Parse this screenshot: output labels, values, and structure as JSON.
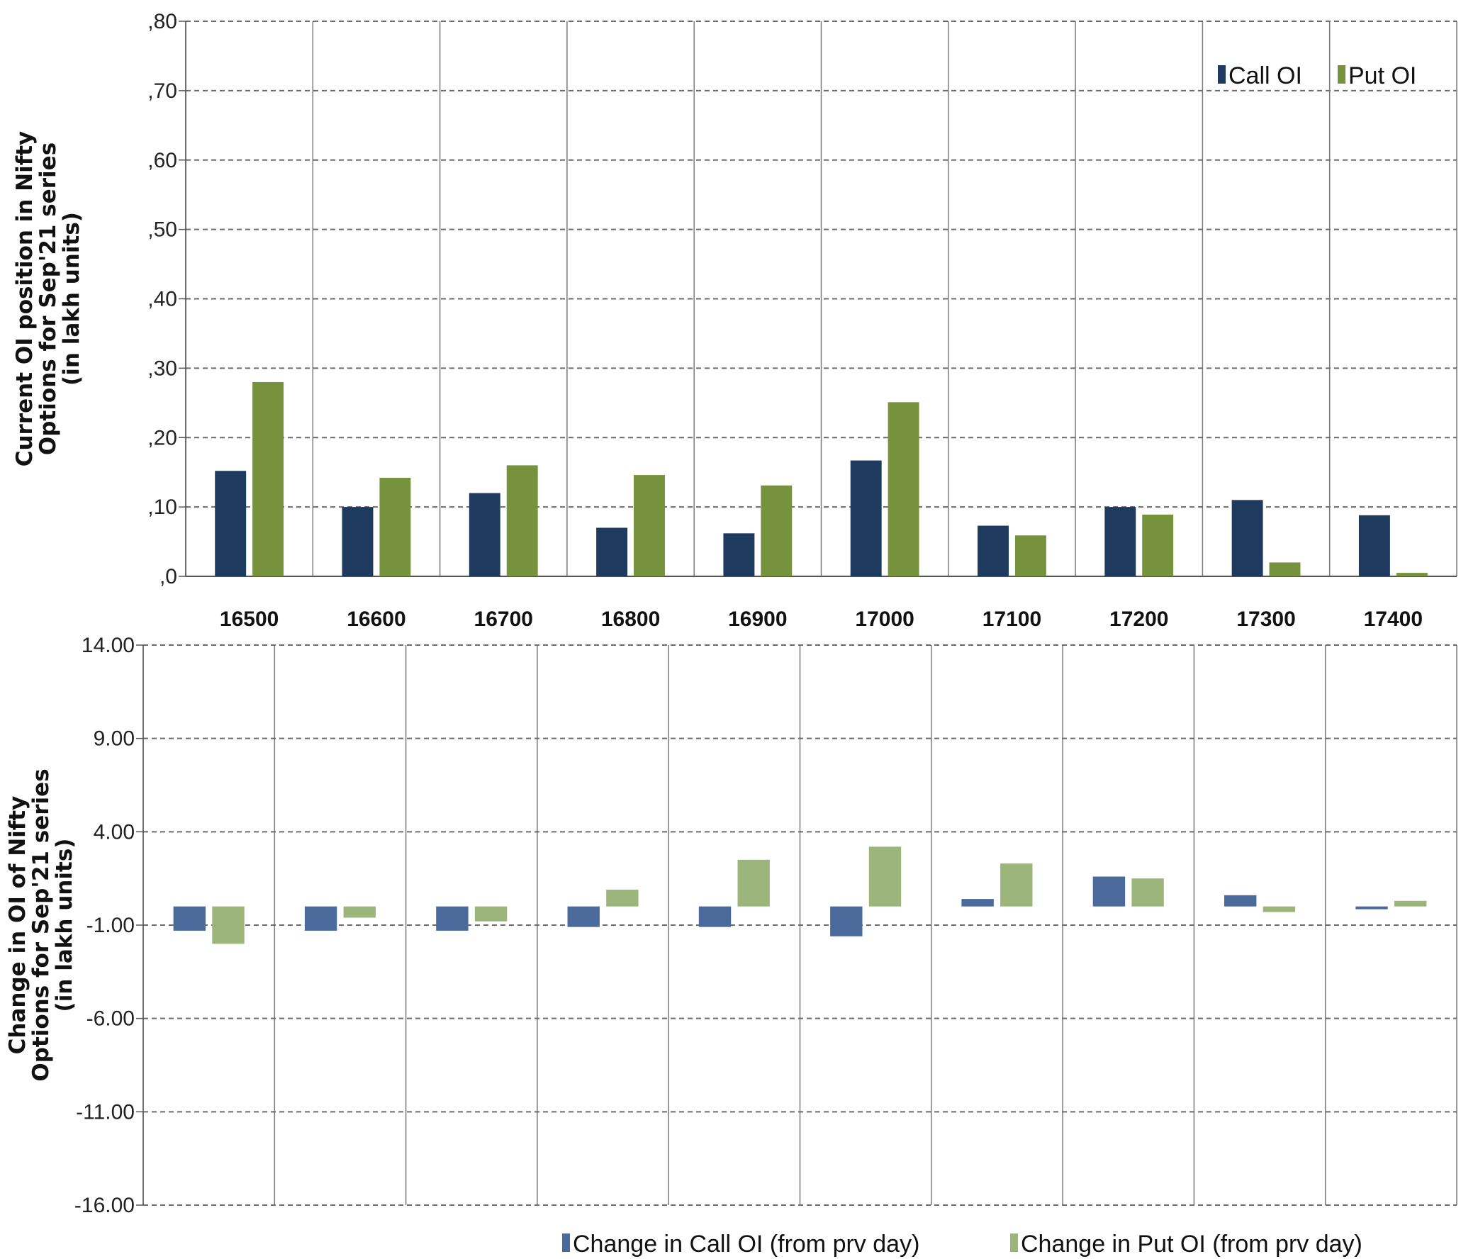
{
  "chart_data": [
    {
      "type": "bar",
      "ylabel": [
        "Current OI position in Nifty",
        "Options for Sep'21 series",
        "(in lakh units)"
      ],
      "categories": [
        "16500",
        "16600",
        "16700",
        "16800",
        "16900",
        "17000",
        "17100",
        "17200",
        "17300",
        "17400"
      ],
      "yticks": [
        ",0",
        ",10",
        ",20",
        ",30",
        ",40",
        ",50",
        ",60",
        ",70",
        ",80"
      ],
      "ylim": [
        0,
        80
      ],
      "grid": true,
      "legend_position": "top-right",
      "series": [
        {
          "name": "Call OI",
          "color": "#1f3a5f",
          "values": [
            15.2,
            10.0,
            12.0,
            7.0,
            6.2,
            16.7,
            7.3,
            10.0,
            11.0,
            8.8
          ]
        },
        {
          "name": "Put OI",
          "color": "#76923c",
          "values": [
            28.0,
            14.2,
            16.0,
            14.6,
            13.1,
            25.1,
            5.9,
            8.9,
            2.0,
            0.5
          ]
        }
      ]
    },
    {
      "type": "bar",
      "ylabel": [
        "Change in OI of Nifty",
        "Options for Sep'21 series",
        "(in lakh units)"
      ],
      "categories": [
        "16500",
        "16600",
        "16700",
        "16800",
        "16900",
        "17000",
        "17100",
        "17200",
        "17300",
        "17400"
      ],
      "yticks": [
        "14.00",
        "9.00",
        "4.00",
        "-1.00",
        "-6.00",
        "-11.00",
        "-16.00"
      ],
      "ylim": [
        -16,
        14
      ],
      "grid": true,
      "legend_position": "bottom",
      "series": [
        {
          "name": "Change in Call OI (from prv day)",
          "color": "#4a6a9c",
          "values": [
            -1.3,
            -1.3,
            -1.3,
            -1.1,
            -1.1,
            -1.6,
            0.4,
            1.6,
            0.6,
            -0.15
          ]
        },
        {
          "name": "Change in Put OI (from prv day)",
          "color": "#9bb57a",
          "values": [
            -2.0,
            -0.6,
            -0.8,
            0.9,
            2.5,
            3.2,
            2.3,
            1.5,
            -0.3,
            0.3
          ]
        }
      ]
    }
  ]
}
